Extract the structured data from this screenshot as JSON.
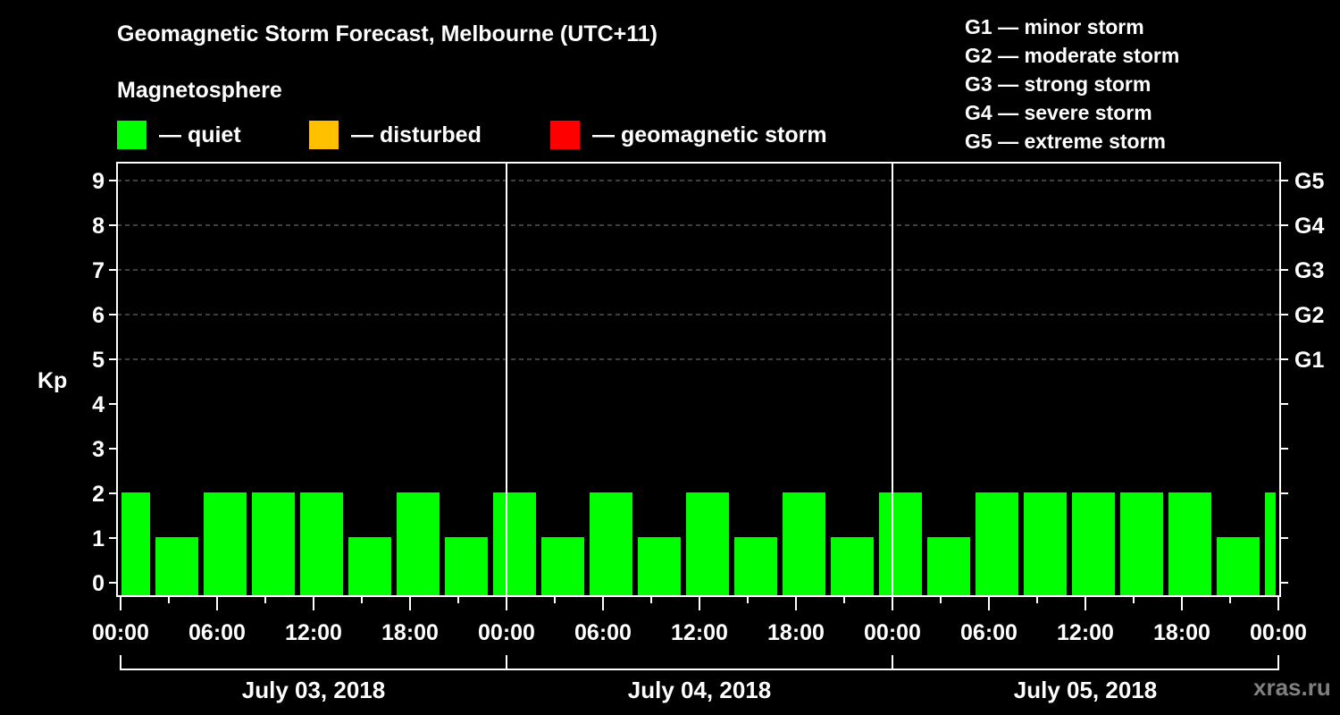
{
  "header": {
    "title": "Geomagnetic Storm Forecast, Melbourne (UTC+11)",
    "subtitle": "Magnetosphere"
  },
  "legend": [
    {
      "label": "— quiet",
      "color": "#00ff00"
    },
    {
      "label": "— disturbed",
      "color": "#ffc000"
    },
    {
      "label": "— geomagnetic storm",
      "color": "#ff0000"
    }
  ],
  "storm_levels": [
    "G1 — minor storm",
    "G2 — moderate storm",
    "G3 — strong storm",
    "G4 — severe storm",
    "G5 — extreme storm"
  ],
  "watermark": "xras.ru",
  "chart_data": {
    "type": "bar",
    "title": "Geomagnetic Storm Forecast, Melbourne (UTC+11)",
    "subtitle": "Magnetosphere",
    "ylabel": "Kp",
    "ylim": [
      0,
      9
    ],
    "yticks": [
      0,
      1,
      2,
      3,
      4,
      5,
      6,
      7,
      8,
      9
    ],
    "right_axis_ticks": [
      {
        "kp": 5,
        "label": "G1"
      },
      {
        "kp": 6,
        "label": "G2"
      },
      {
        "kp": 7,
        "label": "G3"
      },
      {
        "kp": 8,
        "label": "G4"
      },
      {
        "kp": 9,
        "label": "G5"
      }
    ],
    "grid": "dashed horizontal at Kp 5-9",
    "xtick_labels": [
      "00:00",
      "06:00",
      "12:00",
      "18:00",
      "00:00",
      "06:00",
      "12:00",
      "18:00",
      "00:00",
      "06:00",
      "12:00",
      "18:00",
      "00:00"
    ],
    "days": [
      "July 03, 2018",
      "July 04, 2018",
      "July 05, 2018"
    ],
    "bar_interval_hours": 3,
    "bar_start_offset_hours": 2,
    "categories": [
      "Jul 03 23:00-02:00",
      "Jul 03 02:00-05:00",
      "Jul 03 05:00-08:00",
      "Jul 03 08:00-11:00",
      "Jul 03 11:00-14:00",
      "Jul 03 14:00-17:00",
      "Jul 03 17:00-20:00",
      "Jul 03 20:00-23:00",
      "Jul 03 23:00-02:00",
      "Jul 04 02:00-05:00",
      "Jul 04 05:00-08:00",
      "Jul 04 08:00-11:00",
      "Jul 04 11:00-14:00",
      "Jul 04 14:00-17:00",
      "Jul 04 17:00-20:00",
      "Jul 04 20:00-23:00",
      "Jul 04 23:00-02:00",
      "Jul 05 02:00-05:00",
      "Jul 05 05:00-08:00",
      "Jul 05 08:00-11:00",
      "Jul 05 11:00-14:00",
      "Jul 05 14:00-17:00",
      "Jul 05 17:00-20:00",
      "Jul 05 20:00-23:00",
      "Jul 05 23:00-02:00"
    ],
    "values": [
      2,
      1,
      2,
      2,
      2,
      1,
      2,
      1,
      2,
      1,
      2,
      1,
      2,
      1,
      2,
      1,
      2,
      1,
      2,
      2,
      2,
      2,
      2,
      1,
      2
    ],
    "status": [
      "quiet",
      "quiet",
      "quiet",
      "quiet",
      "quiet",
      "quiet",
      "quiet",
      "quiet",
      "quiet",
      "quiet",
      "quiet",
      "quiet",
      "quiet",
      "quiet",
      "quiet",
      "quiet",
      "quiet",
      "quiet",
      "quiet",
      "quiet",
      "quiet",
      "quiet",
      "quiet",
      "quiet",
      "quiet"
    ],
    "legend": [
      "quiet",
      "disturbed",
      "geomagnetic storm"
    ]
  }
}
